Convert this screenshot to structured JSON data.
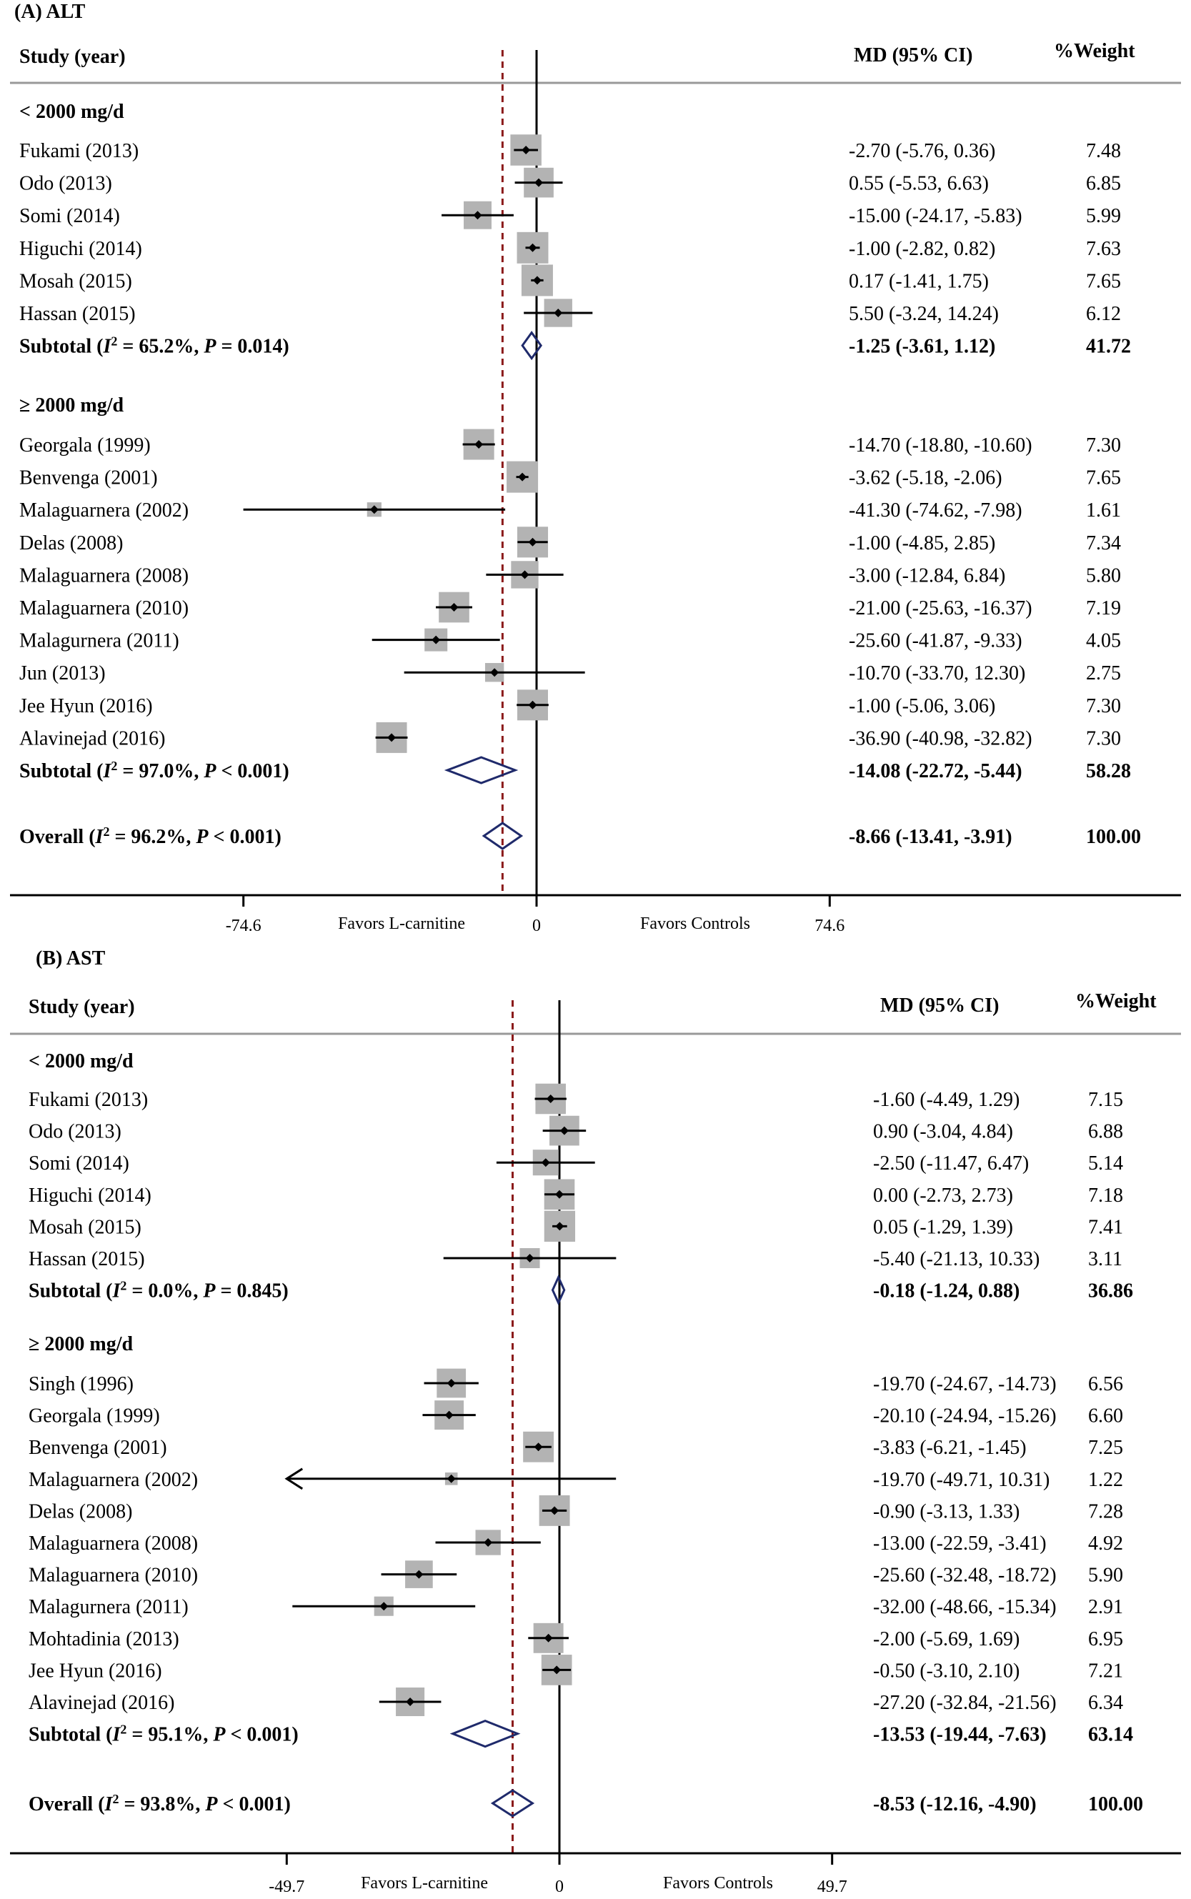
{
  "chart_data": [
    {
      "type": "forest",
      "panel": "(A)",
      "title": "ALT",
      "col_study": "Study (year)",
      "col_md": "MD (95% CI)",
      "col_weight": "%Weight",
      "xlim": [
        -74.6,
        74.6
      ],
      "ticks": [
        "-74.6",
        "0",
        "74.6"
      ],
      "favors_left": "Favors L-carnitine",
      "favors_right": "Favors Controls",
      "overall_effect": -8.66,
      "colors": {
        "box": "#b3b3b3",
        "diamond": "#1f2a6b",
        "dashed": "#8b1a1a",
        "line": "#000000"
      },
      "groups": [
        {
          "header": "< 2000 mg/d",
          "studies": [
            {
              "name": "Fukami (2013)",
              "md": -2.7,
              "lo": -5.76,
              "hi": 0.36,
              "weight": 7.48,
              "ci_text": "-2.70 (-5.76, 0.36)",
              "weight_text": "7.48"
            },
            {
              "name": "Odo (2013)",
              "md": 0.55,
              "lo": -5.53,
              "hi": 6.63,
              "weight": 6.85,
              "ci_text": "0.55 (-5.53, 6.63)",
              "weight_text": "6.85"
            },
            {
              "name": "Somi (2014)",
              "md": -15.0,
              "lo": -24.17,
              "hi": -5.83,
              "weight": 5.99,
              "ci_text": "-15.00 (-24.17, -5.83)",
              "weight_text": "5.99"
            },
            {
              "name": "Higuchi (2014)",
              "md": -1.0,
              "lo": -2.82,
              "hi": 0.82,
              "weight": 7.63,
              "ci_text": "-1.00 (-2.82, 0.82)",
              "weight_text": "7.63"
            },
            {
              "name": "Mosah (2015)",
              "md": 0.17,
              "lo": -1.41,
              "hi": 1.75,
              "weight": 7.65,
              "ci_text": "0.17 (-1.41, 1.75)",
              "weight_text": "7.65"
            },
            {
              "name": "Hassan (2015)",
              "md": 5.5,
              "lo": -3.24,
              "hi": 14.24,
              "weight": 6.12,
              "ci_text": "5.50 (-3.24, 14.24)",
              "weight_text": "6.12"
            }
          ],
          "subtotal": {
            "stat_prefix": "Subtotal (",
            "i2_label": "I",
            "stat_suffix": " = 65.2%, ",
            "p_label": "P",
            "p_text": " = 0.014)",
            "md": -1.25,
            "lo": -3.61,
            "hi": 1.12,
            "ci_text": "-1.25 (-3.61, 1.12)",
            "weight_text": "41.72"
          }
        },
        {
          "header": "≥ 2000 mg/d",
          "studies": [
            {
              "name": "Georgala (1999)",
              "md": -14.7,
              "lo": -18.8,
              "hi": -10.6,
              "weight": 7.3,
              "ci_text": "-14.70 (-18.80, -10.60)",
              "weight_text": "7.30"
            },
            {
              "name": "Benvenga (2001)",
              "md": -3.62,
              "lo": -5.18,
              "hi": -2.06,
              "weight": 7.65,
              "ci_text": "-3.62 (-5.18, -2.06)",
              "weight_text": "7.65"
            },
            {
              "name": "Malaguarnera (2002)",
              "md": -41.3,
              "lo": -74.62,
              "hi": -7.98,
              "weight": 1.61,
              "ci_text": "-41.30 (-74.62, -7.98)",
              "weight_text": "1.61"
            },
            {
              "name": "Delas (2008)",
              "md": -1.0,
              "lo": -4.85,
              "hi": 2.85,
              "weight": 7.34,
              "ci_text": "-1.00 (-4.85, 2.85)",
              "weight_text": "7.34"
            },
            {
              "name": "Malaguarnera (2008)",
              "md": -3.0,
              "lo": -12.84,
              "hi": 6.84,
              "weight": 5.8,
              "ci_text": "-3.00 (-12.84, 6.84)",
              "weight_text": "5.80"
            },
            {
              "name": "Malaguarnera (2010)",
              "md": -21.0,
              "lo": -25.63,
              "hi": -16.37,
              "weight": 7.19,
              "ci_text": "-21.00 (-25.63, -16.37)",
              "weight_text": "7.19"
            },
            {
              "name": "Malagurnera (2011)",
              "md": -25.6,
              "lo": -41.87,
              "hi": -9.33,
              "weight": 4.05,
              "ci_text": "-25.60 (-41.87, -9.33)",
              "weight_text": "4.05"
            },
            {
              "name": "Jun (2013)",
              "md": -10.7,
              "lo": -33.7,
              "hi": 12.3,
              "weight": 2.75,
              "ci_text": "-10.70 (-33.70, 12.30)",
              "weight_text": "2.75"
            },
            {
              "name": "Jee Hyun (2016)",
              "md": -1.0,
              "lo": -5.06,
              "hi": 3.06,
              "weight": 7.3,
              "ci_text": "-1.00 (-5.06, 3.06)",
              "weight_text": "7.30"
            },
            {
              "name": "Alavinejad (2016)",
              "md": -36.9,
              "lo": -40.98,
              "hi": -32.82,
              "weight": 7.3,
              "ci_text": "-36.90 (-40.98, -32.82)",
              "weight_text": "7.30"
            }
          ],
          "subtotal": {
            "stat_prefix": "Subtotal (",
            "i2_label": "I",
            "stat_suffix": " = 97.0%, ",
            "p_label": "P",
            "p_text": " < 0.001)",
            "md": -14.08,
            "lo": -22.72,
            "hi": -5.44,
            "ci_text": "-14.08 (-22.72, -5.44)",
            "weight_text": "58.28"
          }
        }
      ],
      "overall": {
        "stat_prefix": "Overall (",
        "i2_label": "I",
        "stat_suffix": " = 96.2%, ",
        "p_label": "P",
        "p_text": " < 0.001)",
        "md": -8.66,
        "lo": -13.41,
        "hi": -3.91,
        "ci_text": "-8.66 (-13.41, -3.91)",
        "weight_text": "100.00"
      }
    },
    {
      "type": "forest",
      "panel": "(B)",
      "title": "AST",
      "col_study": "Study (year)",
      "col_md": "MD (95% CI)",
      "col_weight": "%Weight",
      "xlim": [
        -49.7,
        49.7
      ],
      "ticks": [
        "-49.7",
        "0",
        "49.7"
      ],
      "favors_left": "Favors L-carnitine",
      "favors_right": "Favors Controls",
      "overall_effect": -8.53,
      "colors": {
        "box": "#b3b3b3",
        "diamond": "#1f2a6b",
        "dashed": "#8b1a1a",
        "line": "#000000"
      },
      "groups": [
        {
          "header": "< 2000 mg/d",
          "studies": [
            {
              "name": "Fukami (2013)",
              "md": -1.6,
              "lo": -4.49,
              "hi": 1.29,
              "weight": 7.15,
              "ci_text": "-1.60 (-4.49, 1.29)",
              "weight_text": "7.15"
            },
            {
              "name": "Odo (2013)",
              "md": 0.9,
              "lo": -3.04,
              "hi": 4.84,
              "weight": 6.88,
              "ci_text": "0.90 (-3.04, 4.84)",
              "weight_text": "6.88"
            },
            {
              "name": "Somi (2014)",
              "md": -2.5,
              "lo": -11.47,
              "hi": 6.47,
              "weight": 5.14,
              "ci_text": "-2.50 (-11.47, 6.47)",
              "weight_text": "5.14"
            },
            {
              "name": "Higuchi (2014)",
              "md": 0.0,
              "lo": -2.73,
              "hi": 2.73,
              "weight": 7.18,
              "ci_text": "0.00 (-2.73, 2.73)",
              "weight_text": "7.18"
            },
            {
              "name": "Mosah (2015)",
              "md": 0.05,
              "lo": -1.29,
              "hi": 1.39,
              "weight": 7.41,
              "ci_text": "0.05 (-1.29, 1.39)",
              "weight_text": "7.41"
            },
            {
              "name": "Hassan (2015)",
              "md": -5.4,
              "lo": -21.13,
              "hi": 10.33,
              "weight": 3.11,
              "ci_text": "-5.40 (-21.13, 10.33)",
              "weight_text": "3.11"
            }
          ],
          "subtotal": {
            "stat_prefix": "Subtotal (",
            "i2_label": "I",
            "stat_suffix": " = 0.0%, ",
            "p_label": "P",
            "p_text": " = 0.845)",
            "md": -0.18,
            "lo": -1.24,
            "hi": 0.88,
            "ci_text": "-0.18 (-1.24, 0.88)",
            "weight_text": "36.86"
          }
        },
        {
          "header": "≥ 2000 mg/d",
          "studies": [
            {
              "name": "Singh (1996)",
              "md": -19.7,
              "lo": -24.67,
              "hi": -14.73,
              "weight": 6.56,
              "ci_text": "-19.70 (-24.67, -14.73)",
              "weight_text": "6.56"
            },
            {
              "name": "Georgala (1999)",
              "md": -20.1,
              "lo": -24.94,
              "hi": -15.26,
              "weight": 6.6,
              "ci_text": "-20.10 (-24.94, -15.26)",
              "weight_text": "6.60"
            },
            {
              "name": "Benvenga (2001)",
              "md": -3.83,
              "lo": -6.21,
              "hi": -1.45,
              "weight": 7.25,
              "ci_text": "-3.83 (-6.21, -1.45)",
              "weight_text": "7.25"
            },
            {
              "name": "Malaguarnera (2002)",
              "md": -19.7,
              "lo": -49.71,
              "hi": 10.31,
              "weight": 1.22,
              "ci_text": "-19.70 (-49.71, 10.31)",
              "weight_text": "1.22",
              "arrow_left": true
            },
            {
              "name": "Delas (2008)",
              "md": -0.9,
              "lo": -3.13,
              "hi": 1.33,
              "weight": 7.28,
              "ci_text": "-0.90 (-3.13, 1.33)",
              "weight_text": "7.28"
            },
            {
              "name": "Malaguarnera (2008)",
              "md": -13.0,
              "lo": -22.59,
              "hi": -3.41,
              "weight": 4.92,
              "ci_text": "-13.00 (-22.59, -3.41)",
              "weight_text": "4.92"
            },
            {
              "name": "Malaguarnera (2010)",
              "md": -25.6,
              "lo": -32.48,
              "hi": -18.72,
              "weight": 5.9,
              "ci_text": "-25.60 (-32.48, -18.72)",
              "weight_text": "5.90"
            },
            {
              "name": "Malagurnera (2011)",
              "md": -32.0,
              "lo": -48.66,
              "hi": -15.34,
              "weight": 2.91,
              "ci_text": "-32.00 (-48.66, -15.34)",
              "weight_text": "2.91"
            },
            {
              "name": "Mohtadinia (2013)",
              "md": -2.0,
              "lo": -5.69,
              "hi": 1.69,
              "weight": 6.95,
              "ci_text": "-2.00 (-5.69, 1.69)",
              "weight_text": "6.95"
            },
            {
              "name": "Jee Hyun (2016)",
              "md": -0.5,
              "lo": -3.1,
              "hi": 2.1,
              "weight": 7.21,
              "ci_text": "-0.50 (-3.10, 2.10)",
              "weight_text": "7.21"
            },
            {
              "name": "Alavinejad (2016)",
              "md": -27.2,
              "lo": -32.84,
              "hi": -21.56,
              "weight": 6.34,
              "ci_text": "-27.20 (-32.84, -21.56)",
              "weight_text": "6.34"
            }
          ],
          "subtotal": {
            "stat_prefix": "Subtotal (",
            "i2_label": "I",
            "stat_suffix": " = 95.1%, ",
            "p_label": "P",
            "p_text": " < 0.001)",
            "md": -13.53,
            "lo": -19.44,
            "hi": -7.63,
            "ci_text": "-13.53 (-19.44, -7.63)",
            "weight_text": "63.14"
          }
        }
      ],
      "overall": {
        "stat_prefix": "Overall (",
        "i2_label": "I",
        "stat_suffix": " = 93.8%, ",
        "p_label": "P",
        "p_text": " < 0.001)",
        "md": -8.53,
        "lo": -12.16,
        "hi": -4.9,
        "ci_text": "-8.53 (-12.16, -4.90)",
        "weight_text": "100.00"
      }
    }
  ]
}
